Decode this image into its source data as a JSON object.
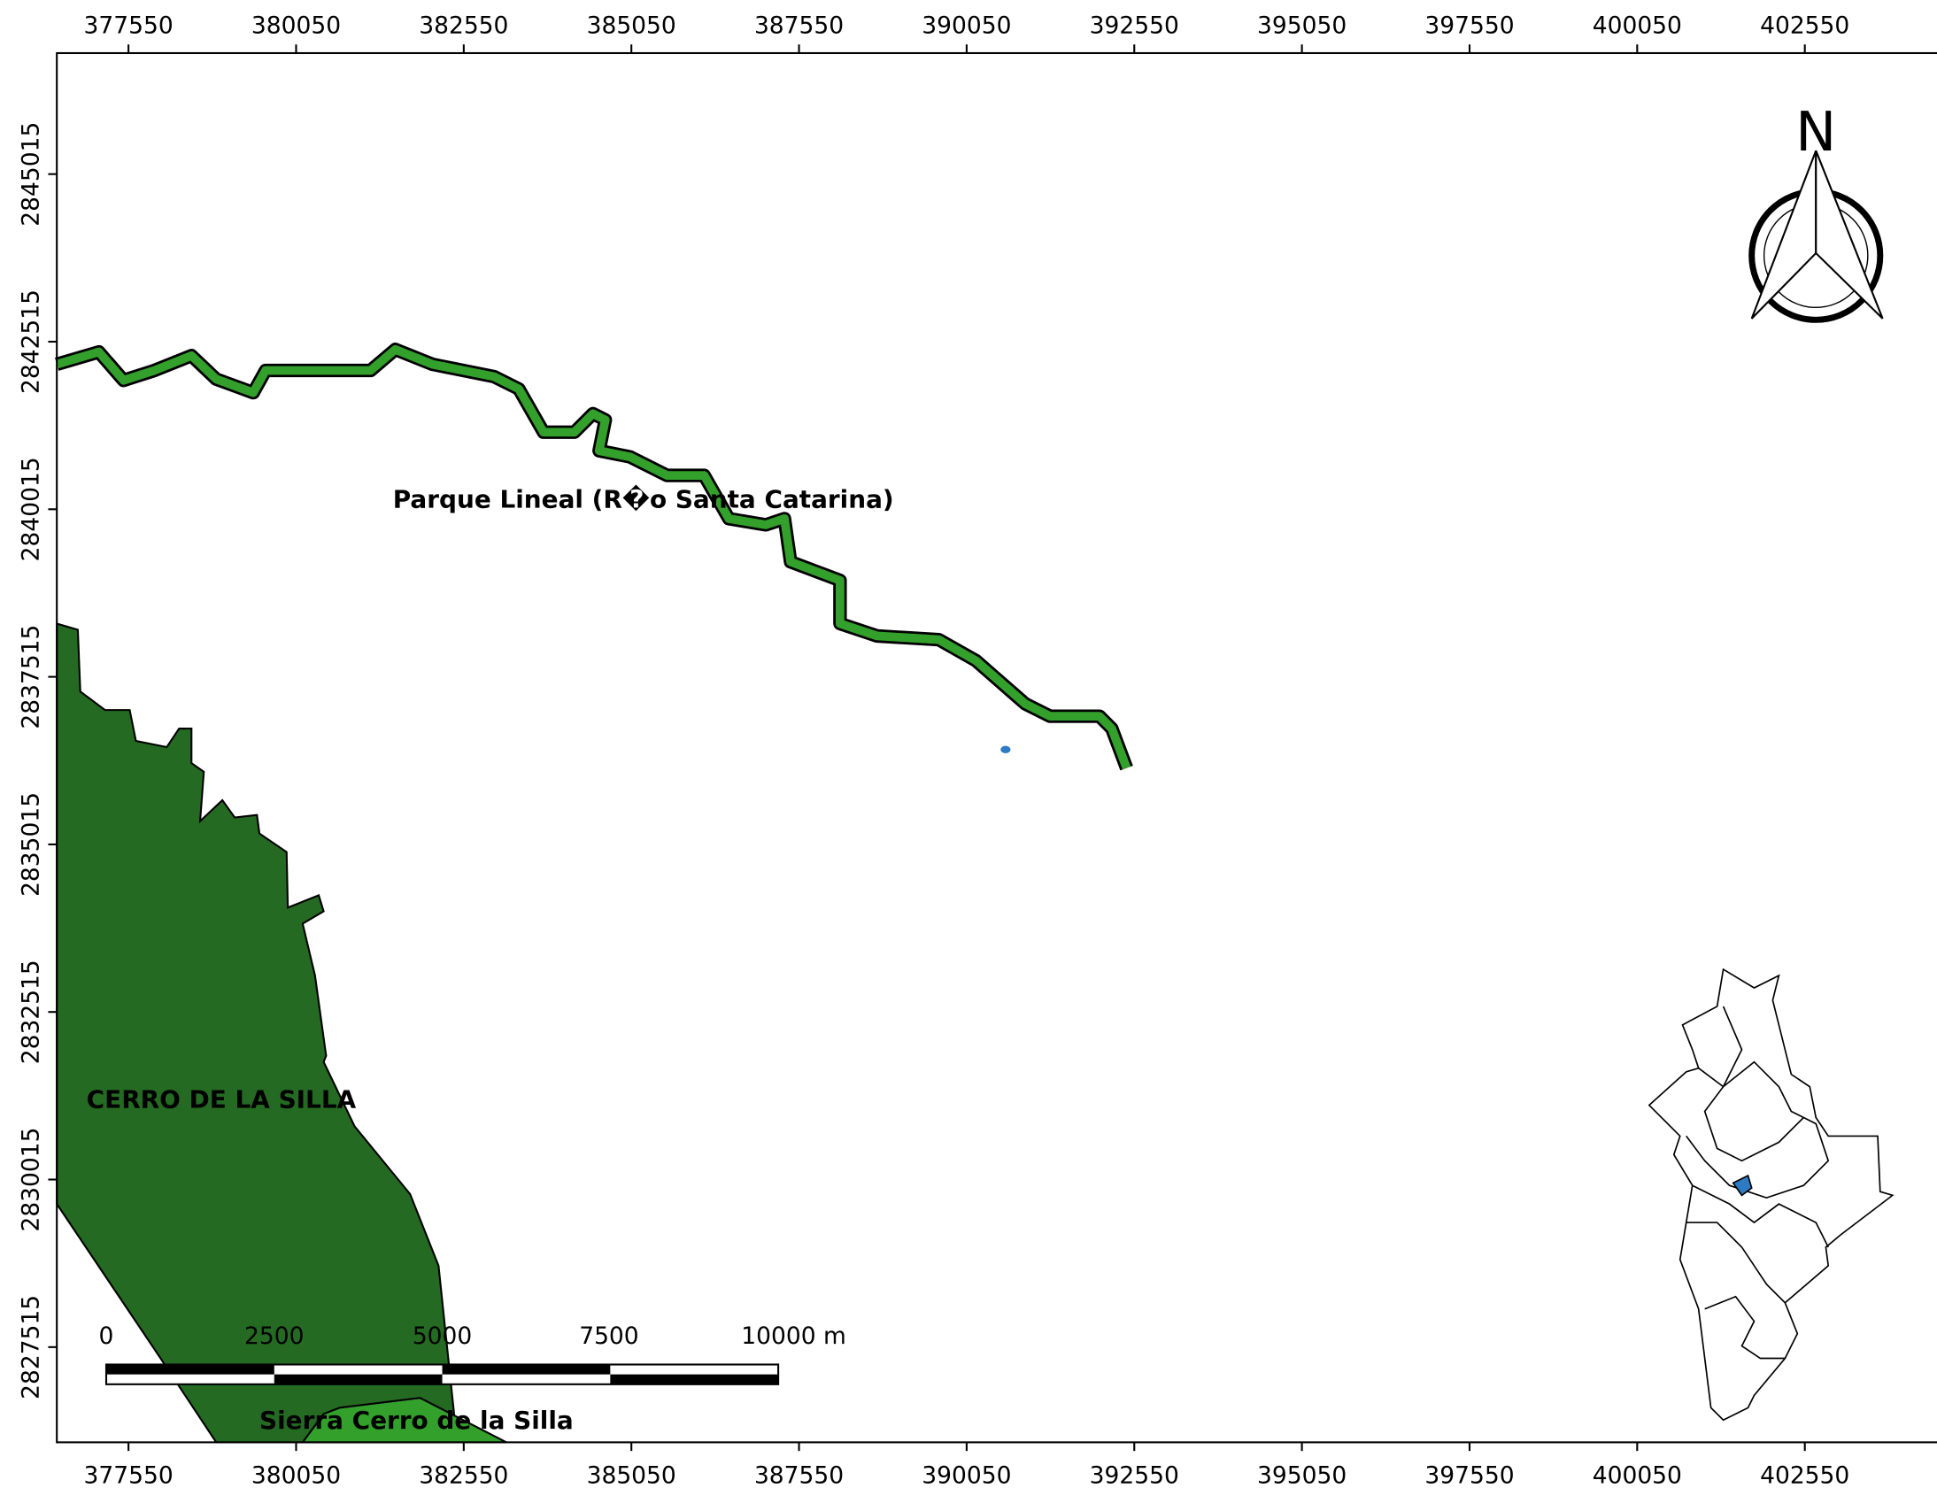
{
  "map": {
    "x_ticks": [
      377550,
      380050,
      382550,
      385050,
      387550,
      390050,
      392550,
      395050,
      397550,
      400050,
      402550
    ],
    "y_ticks": [
      2845015,
      2842515,
      2840015,
      2837515,
      2835015,
      2832515,
      2830015,
      2827515
    ],
    "labels": [
      "Parque Lineal (R�o Santa Catarina)",
      "CERRO DE LA SILLA",
      "Sierra Cerro de la Silla"
    ],
    "scale_bar": [
      "0",
      "2500",
      "5000",
      "7500",
      "10000 m"
    ],
    "north": "N"
  }
}
